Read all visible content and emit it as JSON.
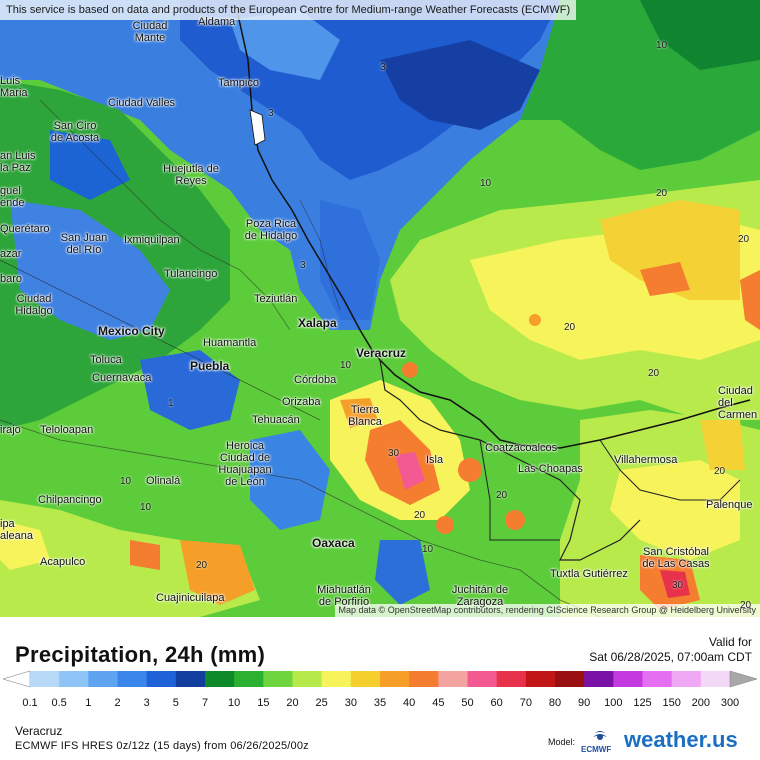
{
  "map": {
    "attribution_top": "This service is based on data and products of the European Centre for Medium-range Weather Forecasts (ECMWF)",
    "attribution_bottom": "Map data © OpenStreetMap contributors, rendering GIScience Research Group @ Heidelberg University",
    "cities": [
      {
        "name": "Aldama",
        "id": "aldama"
      },
      {
        "name": "Ciudad Mante",
        "id": "ciudad-mante"
      },
      {
        "name": "Tampico",
        "id": "tampico"
      },
      {
        "name": "Luis Maria",
        "id": "luis-maria"
      },
      {
        "name": "Ciudad Valles",
        "id": "ciudad-valles"
      },
      {
        "name": "San Ciro de Acosta",
        "id": "san-ciro"
      },
      {
        "name": "an Luis la Paz",
        "id": "san-luis-la-paz"
      },
      {
        "name": "Huejutla de Reyes",
        "id": "huejutla"
      },
      {
        "name": "guel ende",
        "id": "miguel-allende"
      },
      {
        "name": "Poza Rica de Hidalgo",
        "id": "poza-rica"
      },
      {
        "name": "Querétaro",
        "id": "queretaro"
      },
      {
        "name": "San Juan del Río",
        "id": "san-juan-del-rio"
      },
      {
        "name": "Ixmiquilpan",
        "id": "ixmiquilpan"
      },
      {
        "name": "azar",
        "id": "salazar"
      },
      {
        "name": "Tulancingo",
        "id": "tulancingo"
      },
      {
        "name": "baro",
        "id": "celaya-partial"
      },
      {
        "name": "Ciudad Hidalgo",
        "id": "ciudad-hidalgo"
      },
      {
        "name": "Teziutlán",
        "id": "teziutlan"
      },
      {
        "name": "Xalapa",
        "id": "xalapa"
      },
      {
        "name": "Mexico City",
        "id": "mexico-city"
      },
      {
        "name": "Huamantla",
        "id": "huamantla"
      },
      {
        "name": "Veracruz",
        "id": "veracruz"
      },
      {
        "name": "Toluca",
        "id": "toluca"
      },
      {
        "name": "Puebla",
        "id": "puebla"
      },
      {
        "name": "Cuernavaca",
        "id": "cuernavaca"
      },
      {
        "name": "Córdoba",
        "id": "cordoba"
      },
      {
        "name": "Orizaba",
        "id": "orizaba"
      },
      {
        "name": "Tierra Blanca",
        "id": "tierra-blanca"
      },
      {
        "name": "Tehuacán",
        "id": "tehuacan"
      },
      {
        "name": "Teloloapan",
        "id": "teloloapan"
      },
      {
        "name": "irajo",
        "id": "zirandaro-partial"
      },
      {
        "name": "Heroica Ciudad de Huajuapan de León",
        "id": "huajuapan"
      },
      {
        "name": "Isla",
        "id": "isla"
      },
      {
        "name": "Coatzacoalcos",
        "id": "coatzacoalcos"
      },
      {
        "name": "Las Choapas",
        "id": "las-choapas"
      },
      {
        "name": "Villahermosa",
        "id": "villahermosa"
      },
      {
        "name": "Ciudad del Carmen",
        "id": "ciudad-del-carmen"
      },
      {
        "name": "Olinalá",
        "id": "olinala"
      },
      {
        "name": "Chilpancingo",
        "id": "chilpancingo"
      },
      {
        "name": "Palenque",
        "id": "palenque"
      },
      {
        "name": "Oaxaca",
        "id": "oaxaca"
      },
      {
        "name": "Acapulco",
        "id": "acapulco"
      },
      {
        "name": "San Cristóbal de Las Casas",
        "id": "san-cristobal"
      },
      {
        "name": "Tuxtla Gutiérrez",
        "id": "tuxtla"
      },
      {
        "name": "Miahuatlán de Porfirio",
        "id": "miahuatlan"
      },
      {
        "name": "Juchitán de Zaragoza",
        "id": "juchitan"
      },
      {
        "name": "Cuajinicuilapa",
        "id": "cuajinicuilapa"
      },
      {
        "name": "ipa aleana",
        "id": "tlapa-partial"
      }
    ],
    "contour_labels": [
      "10",
      "3",
      "10",
      "20",
      "20",
      "20",
      "20",
      "10",
      "20",
      "20",
      "10",
      "30",
      "20",
      "20",
      "20",
      "30",
      "10",
      "20",
      "3",
      "3",
      "10",
      "1"
    ]
  },
  "footer": {
    "title": "Precipitation, 24h (mm)",
    "valid_label": "Valid for",
    "valid_time": "Sat 06/28/2025, 07:00am CDT",
    "region": "Veracruz",
    "model_line": "ECMWF IFS HRES 0z/12z (15 days) from 06/26/2025/00z",
    "model_word": "Model:",
    "ecmwf_text": "ECMWF",
    "brand": "weather.us"
  },
  "legend": {
    "ticks": [
      "0.1",
      "0.5",
      "1",
      "2",
      "3",
      "5",
      "7",
      "10",
      "15",
      "20",
      "25",
      "30",
      "35",
      "40",
      "45",
      "50",
      "60",
      "70",
      "80",
      "90",
      "100",
      "125",
      "150",
      "200",
      "300"
    ],
    "colors": [
      "#b8d8f8",
      "#8ec4f6",
      "#5fa4f0",
      "#3b86ea",
      "#1f62d8",
      "#123f9e",
      "#0f8a2a",
      "#2bb12f",
      "#6fd53f",
      "#b6ea4a",
      "#f7f35a",
      "#f4cf2e",
      "#f59f28",
      "#f47d30",
      "#f4a4a0",
      "#f45a92",
      "#e8314a",
      "#c01616",
      "#9a0f10",
      "#7a12a8",
      "#c23ae0",
      "#e46ff0",
      "#f0a8f4",
      "#f4d8f8",
      "#d8d8d8",
      "#a8a8a8"
    ]
  }
}
